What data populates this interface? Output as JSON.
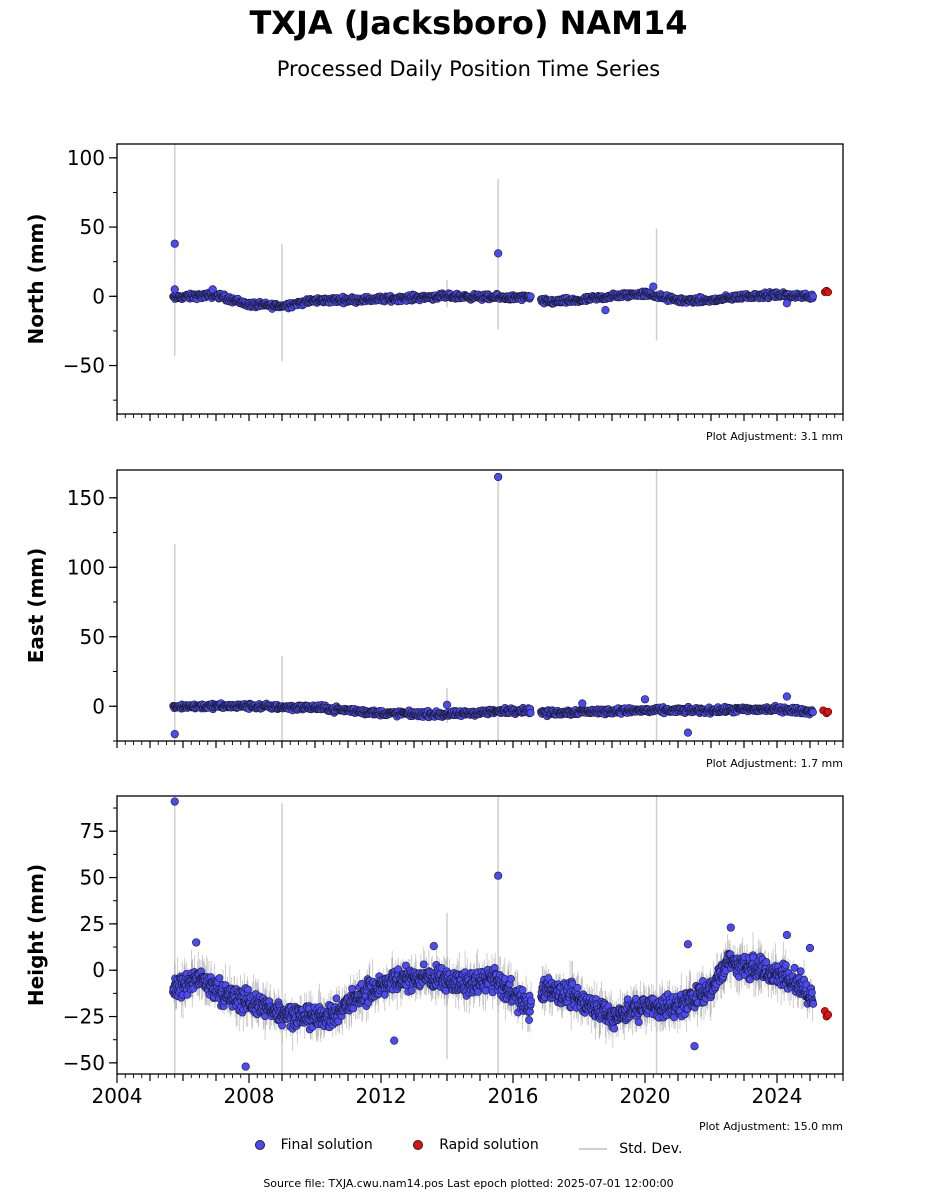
{
  "title": "TXJA (Jacksboro) NAM14",
  "subtitle": "Processed Daily Position Time Series",
  "legend": {
    "final": "Final solution",
    "rapid": "Rapid solution",
    "stddev": "Std. Dev."
  },
  "footer": "Source file: TXJA.cwu.nam14.pos  Last epoch plotted: 2025-07-01 12:00:00",
  "colors": {
    "final": "#4b4bf5",
    "rapid": "#e01010",
    "stddev": "#cfcfcf"
  },
  "chart_data": [
    {
      "type": "scatter",
      "ylabel": "North (mm)",
      "ylim": [
        -85,
        110
      ],
      "yticks": [
        -50,
        0,
        50,
        100
      ],
      "ytick_labels": [
        "−50",
        "0",
        "50",
        "100"
      ],
      "xlim": [
        2004,
        2026
      ],
      "adjustment": "Plot Adjustment: 3.1 mm",
      "trend": [
        [
          2005.7,
          -1
        ],
        [
          2007,
          1
        ],
        [
          2008,
          -6
        ],
        [
          2009,
          -7
        ],
        [
          2010,
          -3
        ],
        [
          2012,
          -2
        ],
        [
          2014,
          0
        ],
        [
          2016,
          -1
        ],
        [
          2016.5,
          -1
        ],
        [
          2017,
          -4
        ],
        [
          2018,
          -3
        ],
        [
          2019,
          0
        ],
        [
          2020,
          2
        ],
        [
          2021,
          -3
        ],
        [
          2022,
          -3
        ],
        [
          2023,
          0
        ],
        [
          2024,
          1
        ],
        [
          2025.1,
          0
        ]
      ],
      "scatter_amp": 3,
      "outliers": [
        [
          2005.75,
          38
        ],
        [
          2015.55,
          31
        ],
        [
          2005.75,
          5
        ],
        [
          2006.9,
          5
        ],
        [
          2018.8,
          -10
        ],
        [
          2020.25,
          7
        ],
        [
          2024.3,
          -5
        ]
      ],
      "rapid": [
        [
          2025.45,
          3
        ],
        [
          2025.5,
          4
        ],
        [
          2025.55,
          3
        ]
      ],
      "spikes": [
        [
          2005.75,
          -43,
          110
        ],
        [
          2009.0,
          -47,
          38
        ],
        [
          2014.0,
          -8,
          12
        ],
        [
          2015.55,
          -24,
          85
        ],
        [
          2020.35,
          -32,
          49
        ]
      ]
    },
    {
      "type": "scatter",
      "ylabel": "East (mm)",
      "ylim": [
        -25,
        170
      ],
      "yticks": [
        0,
        50,
        100,
        150
      ],
      "ytick_labels": [
        "0",
        "50",
        "100",
        "150"
      ],
      "xlim": [
        2004,
        2026
      ],
      "adjustment": "Plot Adjustment: 1.7 mm",
      "trend": [
        [
          2005.7,
          0
        ],
        [
          2008,
          0
        ],
        [
          2010,
          -1
        ],
        [
          2012,
          -5
        ],
        [
          2014,
          -6
        ],
        [
          2016,
          -3
        ],
        [
          2016.5,
          -3
        ],
        [
          2017,
          -5
        ],
        [
          2018,
          -4
        ],
        [
          2020,
          -3
        ],
        [
          2022,
          -3
        ],
        [
          2024,
          -2
        ],
        [
          2025.1,
          -4
        ]
      ],
      "scatter_amp": 3,
      "outliers": [
        [
          2015.55,
          165
        ],
        [
          2005.75,
          -20
        ],
        [
          2021.3,
          -19
        ],
        [
          2024.3,
          7
        ],
        [
          2020.0,
          5
        ],
        [
          2014.0,
          1
        ],
        [
          2018.1,
          2
        ]
      ],
      "rapid": [
        [
          2025.4,
          -3
        ],
        [
          2025.5,
          -5
        ],
        [
          2025.55,
          -4
        ]
      ],
      "spikes": [
        [
          2005.75,
          -25,
          117
        ],
        [
          2009.0,
          -25,
          36
        ],
        [
          2014.0,
          -12,
          13
        ],
        [
          2015.55,
          -25,
          165
        ],
        [
          2020.35,
          -25,
          170
        ]
      ]
    },
    {
      "type": "scatter",
      "ylabel": "Height (mm)",
      "ylim": [
        -56,
        94
      ],
      "yticks": [
        -50,
        -25,
        0,
        25,
        50,
        75
      ],
      "ytick_labels": [
        "−50",
        "−25",
        "0",
        "25",
        "50",
        "75"
      ],
      "xlim": [
        2004,
        2026
      ],
      "xticks": [
        2004,
        2008,
        2012,
        2016,
        2020,
        2024
      ],
      "xtick_labels": [
        "2004",
        "2008",
        "2012",
        "2016",
        "2020",
        "2024"
      ],
      "adjustment": "Plot Adjustment: 15.0 mm",
      "trend": [
        [
          2005.7,
          -10
        ],
        [
          2006.5,
          -5
        ],
        [
          2007.5,
          -15
        ],
        [
          2008.5,
          -20
        ],
        [
          2009.5,
          -25
        ],
        [
          2010.5,
          -25
        ],
        [
          2011.5,
          -12
        ],
        [
          2012.5,
          -5
        ],
        [
          2013.5,
          -3
        ],
        [
          2014.5,
          -8
        ],
        [
          2015.5,
          -5
        ],
        [
          2016.5,
          -20
        ],
        [
          2017,
          -10
        ],
        [
          2018,
          -15
        ],
        [
          2019,
          -25
        ],
        [
          2020,
          -20
        ],
        [
          2021,
          -20
        ],
        [
          2022,
          -10
        ],
        [
          2022.5,
          5
        ],
        [
          2023.5,
          0
        ],
        [
          2024.5,
          -5
        ],
        [
          2025.1,
          -15
        ]
      ],
      "scatter_amp": 9,
      "outliers": [
        [
          2005.75,
          91
        ],
        [
          2015.55,
          51
        ],
        [
          2021.3,
          14
        ],
        [
          2022.6,
          23
        ],
        [
          2024.3,
          19
        ],
        [
          2025.0,
          12
        ],
        [
          2007.9,
          -52
        ],
        [
          2012.4,
          -38
        ],
        [
          2021.5,
          -41
        ],
        [
          2006.4,
          15
        ],
        [
          2013.6,
          13
        ]
      ],
      "rapid": [
        [
          2025.45,
          -22
        ],
        [
          2025.5,
          -25
        ],
        [
          2025.55,
          -24
        ]
      ],
      "spikes": [
        [
          2005.75,
          -56,
          94
        ],
        [
          2009.0,
          -56,
          90
        ],
        [
          2014.0,
          -48,
          31
        ],
        [
          2015.55,
          -56,
          94
        ],
        [
          2020.35,
          -56,
          94
        ]
      ]
    }
  ]
}
